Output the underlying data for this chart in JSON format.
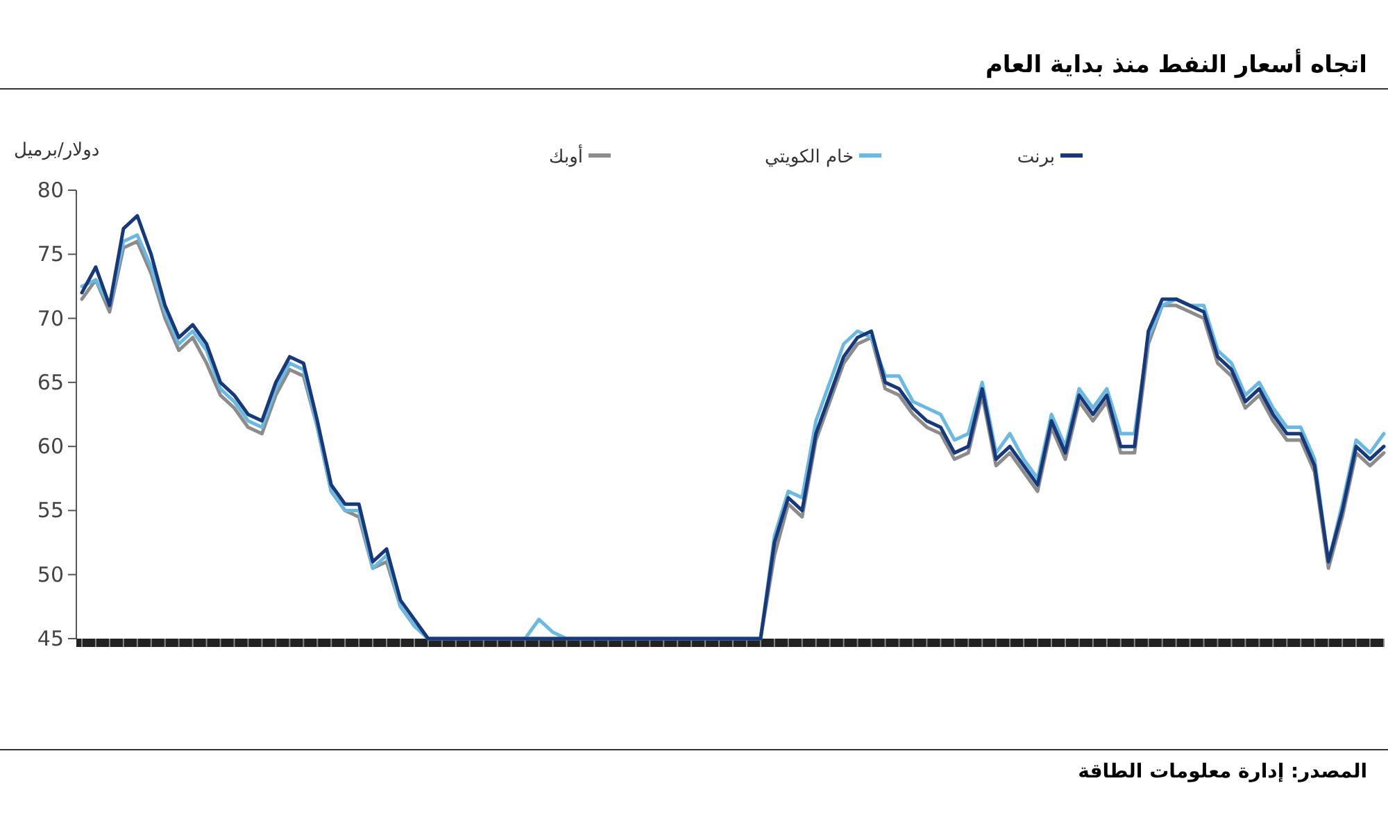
{
  "chart_data": {
    "type": "line",
    "title": "اتجاه أسعار النفط منذ بداية العام",
    "ylabel": "دولار/برميل",
    "categories": [
      null,
      null,
      null,
      null,
      null,
      null,
      null,
      null,
      null,
      null,
      null,
      null,
      null,
      null,
      null,
      null,
      null,
      null,
      null,
      null,
      null,
      null,
      null,
      null,
      null,
      null,
      null,
      null,
      null,
      null,
      null,
      null,
      null,
      null,
      null,
      null,
      null,
      null,
      null,
      null,
      null,
      null,
      null,
      null,
      null,
      null,
      null,
      null,
      null,
      null,
      null,
      null,
      null,
      null,
      null,
      null,
      null,
      null,
      null,
      null,
      null,
      null,
      null,
      null,
      null,
      null,
      null,
      null,
      null,
      null,
      null,
      null,
      null,
      null,
      null,
      null,
      null,
      null,
      null,
      null,
      null,
      null,
      null,
      null,
      null,
      null,
      null,
      null,
      null,
      null,
      null,
      null,
      null,
      null,
      null
    ],
    "series": [
      {
        "name": "برنت",
        "color": "#17387a",
        "values": [
          72,
          74,
          71,
          77,
          78,
          75,
          71,
          68.5,
          69.5,
          68,
          65,
          64,
          62.5,
          62,
          65,
          67,
          66.5,
          62,
          57,
          55.5,
          55.5,
          51,
          52,
          48,
          46.5,
          45,
          45,
          45,
          45,
          45,
          45,
          45,
          45,
          45,
          45,
          45,
          45,
          45,
          45,
          45,
          45,
          45,
          45,
          45,
          45,
          45,
          45,
          45,
          45,
          45,
          52.5,
          56,
          55,
          61,
          64,
          67,
          68.5,
          69,
          65,
          64.5,
          63,
          62,
          61.5,
          59.5,
          60,
          64.5,
          59,
          60,
          58.5,
          57,
          62,
          59.5,
          64,
          62.5,
          64,
          60,
          60,
          69,
          71.5,
          71.5,
          71,
          70.5,
          67,
          66,
          63.5,
          64.5,
          62.5,
          61,
          61,
          58.5,
          51,
          55,
          60,
          59,
          60
        ]
      },
      {
        "name": "خام الكويتي",
        "color": "#6bb8e0",
        "values": [
          72.5,
          73,
          71,
          76,
          76.5,
          74,
          70.5,
          68,
          69,
          67.5,
          64.5,
          63.5,
          62,
          61.5,
          64.5,
          66.5,
          66,
          61.5,
          56.5,
          55,
          55,
          50.5,
          51.5,
          47.5,
          46,
          45,
          45,
          45,
          45,
          45,
          45,
          45,
          45,
          46.5,
          45.5,
          45,
          45,
          45,
          45,
          45,
          45,
          45,
          45,
          45,
          45,
          45,
          45,
          45,
          45,
          45,
          53,
          56.5,
          56,
          62,
          65,
          68,
          69,
          68.5,
          65.5,
          65.5,
          63.5,
          63,
          62.5,
          60.5,
          61,
          65,
          59.5,
          61,
          59,
          57.5,
          62.5,
          60,
          64.5,
          63,
          64.5,
          61,
          61,
          68.5,
          71,
          71.5,
          71,
          71,
          67.5,
          66.5,
          64,
          65,
          63,
          61.5,
          61.5,
          59,
          51,
          55.5,
          60.5,
          59.5,
          61
        ]
      },
      {
        "name": "أوبك",
        "color": "#8c8c8c",
        "values": [
          71.5,
          73,
          70.5,
          75.5,
          76,
          73.5,
          70,
          67.5,
          68.5,
          66.5,
          64,
          63,
          61.5,
          61,
          64,
          66,
          65.5,
          61.5,
          56.5,
          55,
          54.5,
          50.5,
          51,
          47.5,
          46,
          45,
          45,
          45,
          45,
          45,
          45,
          45,
          45,
          45,
          45,
          45,
          45,
          45,
          45,
          45,
          45,
          45,
          45,
          45,
          45,
          45,
          45,
          45,
          45,
          45,
          51.5,
          55.5,
          54.5,
          60.5,
          63.5,
          66.5,
          68,
          68.5,
          64.5,
          64,
          62.5,
          61.5,
          61,
          59,
          59.5,
          64,
          58.5,
          59.5,
          58,
          56.5,
          61.5,
          59,
          63.5,
          62,
          63.5,
          59.5,
          59.5,
          68,
          71,
          71,
          70.5,
          70,
          66.5,
          65.5,
          63,
          64,
          62,
          60.5,
          60.5,
          58,
          50.5,
          54.5,
          59.5,
          58.5,
          59.5
        ]
      }
    ],
    "ylim": [
      45,
      80
    ],
    "yticks": [
      45,
      50,
      55,
      60,
      65,
      70,
      75,
      80
    ],
    "grid": false,
    "legend": "top",
    "marker": "none",
    "line_style": "solid",
    "annotations": [
      "المصدر: إدارة معلومات الطاقة"
    ]
  }
}
